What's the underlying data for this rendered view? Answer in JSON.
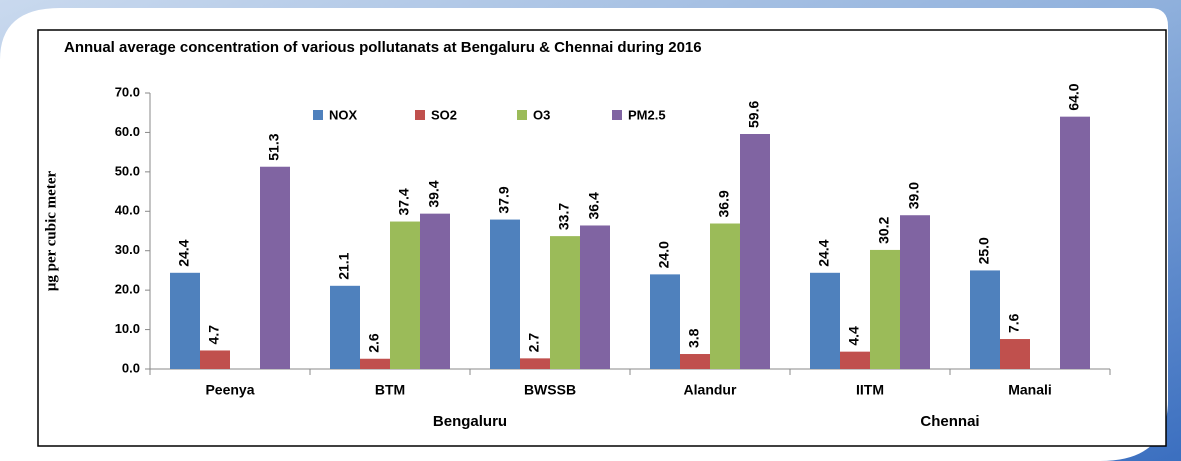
{
  "chart_data": {
    "type": "bar",
    "title": "Annual average concentration of various pollutanats at Bengaluru & Chennai during 2016",
    "ylabel": "μg per cubic meter",
    "categories": [
      "Peenya",
      "BTM",
      "BWSSB",
      "Alandur",
      "IITM",
      "Manali"
    ],
    "group_labels": [
      "Bengaluru",
      "Chennai"
    ],
    "series": [
      {
        "name": "NOX",
        "color": "#4f81bd",
        "values": [
          24.4,
          21.1,
          37.9,
          24,
          24.4,
          25
        ],
        "value_labels": [
          "24.4",
          "21.1",
          "37.9",
          "24.0",
          "24.4",
          "25.0"
        ]
      },
      {
        "name": "SO2",
        "color": "#c0504d",
        "values": [
          4.7,
          2.6,
          2.7,
          3.8,
          4.4,
          7.6
        ],
        "value_labels": [
          "4.7",
          "2.6",
          "2.7",
          "3.8",
          "4.4",
          "7.6"
        ]
      },
      {
        "name": "O3",
        "color": "#9bbb59",
        "values": [
          null,
          37.4,
          33.7,
          36.9,
          30.2,
          null
        ],
        "value_labels": [
          null,
          "37.4",
          "33.7",
          "36.9",
          "30.2",
          null
        ]
      },
      {
        "name": "PM2.5",
        "color": "#8064a2",
        "values": [
          51.3,
          39.4,
          36.4,
          59.6,
          39,
          64
        ],
        "value_labels": [
          "51.3",
          "39.4",
          "36.4",
          "59.6",
          "39.0",
          "64.0"
        ]
      }
    ],
    "ylim": [
      0,
      70
    ],
    "yticks": [
      {
        "value": 0,
        "label": "0.0"
      },
      {
        "value": 10,
        "label": "10.0"
      },
      {
        "value": 20,
        "label": "20.0"
      },
      {
        "value": 30,
        "label": "30.0"
      },
      {
        "value": 40,
        "label": "40.0"
      },
      {
        "value": 50,
        "label": "50.0"
      },
      {
        "value": 60,
        "label": "60.0"
      },
      {
        "value": 70,
        "label": "70.0"
      }
    ],
    "grid": false,
    "legend": "top"
  }
}
